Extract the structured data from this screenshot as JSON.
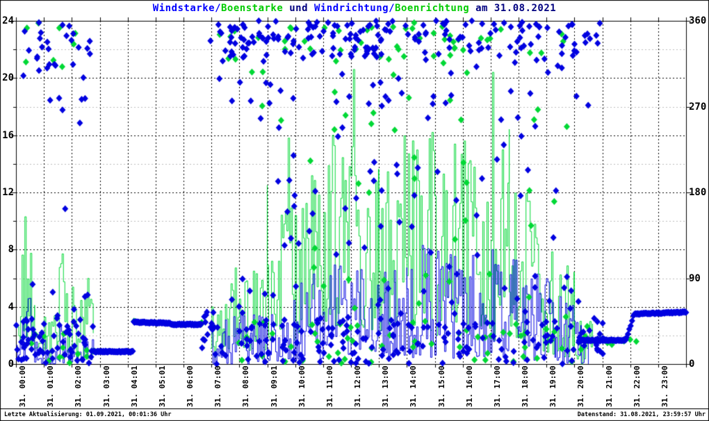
{
  "title_parts": [
    {
      "name": "windstaerke-label",
      "text": "Windstarke/",
      "color": "#0000ff"
    },
    {
      "name": "boenstaerke-label",
      "text": "Boenstarke",
      "color": "#00cc00"
    },
    {
      "name": "und-text",
      "text": " und ",
      "color": "#000080"
    },
    {
      "name": "windrichtung-label",
      "text": "Windrichtung/",
      "color": "#0000ff"
    },
    {
      "name": "boenrichtung-label",
      "text": "Boenrichtung",
      "color": "#00cc00"
    },
    {
      "name": "date-text",
      "text": " am 31.08.2021",
      "color": "#000080"
    }
  ],
  "footer": {
    "left": "Letzte Aktualisierung: 01.09.2021, 00:01:36 Uhr",
    "right": "Datenstand: 31.08.2021, 23:59:57 Uhr"
  },
  "chart_data": {
    "type": "line+scatter",
    "title": "Windstarke/Boenstarke und Windrichtung/Boenrichtung am 31.08.2021",
    "date": "31.08.2021",
    "seed": 20210831,
    "colors": {
      "wind": "#0000e0",
      "gust": "#00d835",
      "grid_major": "#000000",
      "grid_minor": "#bbbbbb",
      "axis": "#000000"
    },
    "x_axis": {
      "minutes": 1440,
      "tick_labels": [
        "31. 00:00",
        "31. 01:00",
        "31. 02:00",
        "31. 03:00",
        "31. 04:01",
        "31. 05:01",
        "31. 06:00",
        "31. 07:00",
        "31. 08:00",
        "31. 09:01",
        "31. 10:00",
        "31. 11:00",
        "31. 12:00",
        "31. 13:00",
        "31. 14:00",
        "31. 15:00",
        "31. 16:00",
        "31. 17:00",
        "31. 18:00",
        "31. 19:00",
        "31. 20:00",
        "31. 21:00",
        "31. 22:00",
        "31. 23:00"
      ]
    },
    "y_left": {
      "range": [
        0,
        24
      ],
      "ticks": [
        0,
        4,
        8,
        12,
        16,
        20,
        24
      ],
      "minor": [
        2,
        6,
        10,
        14,
        18,
        22
      ]
    },
    "y_right": {
      "range": [
        0,
        360
      ],
      "ticks": [
        0,
        90,
        180,
        270,
        360
      ]
    },
    "series": [
      {
        "name": "Windstarke",
        "kind": "line",
        "axis": "left",
        "color_key": "wind",
        "step": 3,
        "bias": 1.6,
        "segments": [
          [
            0,
            14,
            0,
            2.2
          ],
          [
            14,
            40,
            0,
            4.6
          ],
          [
            40,
            95,
            0,
            2.4
          ],
          [
            95,
            125,
            0,
            3.4
          ],
          [
            125,
            168,
            0,
            2.0
          ],
          [
            420,
            450,
            0,
            2.6
          ],
          [
            450,
            540,
            0,
            4.6
          ],
          [
            540,
            660,
            0.2,
            6.0
          ],
          [
            660,
            840,
            0.4,
            7.0
          ],
          [
            840,
            1080,
            0.4,
            8.2
          ],
          [
            1080,
            1160,
            0.2,
            6.5
          ],
          [
            1160,
            1215,
            0,
            5.0
          ],
          [
            1215,
            1230,
            0,
            2.0
          ]
        ],
        "spikes": [
          [
            30,
            4.6
          ],
          [
            640,
            6.3
          ],
          [
            872,
            8.3
          ],
          [
            905,
            7.9
          ],
          [
            982,
            7.6
          ],
          [
            1022,
            8.0
          ]
        ]
      },
      {
        "name": "Boenstarke",
        "kind": "line",
        "axis": "left",
        "color_key": "gust",
        "step": 3,
        "bias": 1.25,
        "segments": [
          [
            0,
            10,
            0.5,
            4.0
          ],
          [
            10,
            40,
            0.8,
            8.0
          ],
          [
            40,
            90,
            0.5,
            3.6
          ],
          [
            90,
            115,
            0.8,
            7.7
          ],
          [
            115,
            168,
            0.4,
            6.0
          ],
          [
            418,
            450,
            0,
            4.0
          ],
          [
            450,
            540,
            0.8,
            7.5
          ],
          [
            540,
            620,
            1.5,
            11.0
          ],
          [
            620,
            780,
            2.0,
            15.5
          ],
          [
            780,
            1000,
            2.0,
            16.0
          ],
          [
            1000,
            1060,
            1.5,
            16.5
          ],
          [
            1060,
            1130,
            1.0,
            12.5
          ],
          [
            1130,
            1200,
            0.5,
            8.0
          ],
          [
            1200,
            1240,
            0,
            3.5
          ]
        ],
        "spikes": [
          [
            18,
            10.3
          ],
          [
            100,
            7.7
          ],
          [
            540,
            12.5
          ],
          [
            585,
            15.8
          ],
          [
            680,
            16.0
          ],
          [
            724,
            20.6
          ],
          [
            893,
            16.2
          ],
          [
            962,
            15.6
          ],
          [
            1025,
            20.4
          ]
        ]
      },
      {
        "name": "Windrichtung",
        "kind": "scatter",
        "axis": "right",
        "color_key": "wind",
        "bands": [
          {
            "t0": 167,
            "t1": 252,
            "d0": 13,
            "d1": 13,
            "every": 1.5,
            "jitter": 1.2
          },
          {
            "t0": 253,
            "t1": 332,
            "d0": 44,
            "d1": 43,
            "every": 1.5,
            "jitter": 1.2
          },
          {
            "t0": 332,
            "t1": 399,
            "d0": 41.5,
            "d1": 41.5,
            "every": 1.5,
            "jitter": 1.2
          },
          {
            "t0": 1210,
            "t1": 1311,
            "d0": 25,
            "d1": 25,
            "every": 1.5,
            "jitter": 1.2
          },
          {
            "t0": 1312,
            "t1": 1328,
            "d0": 28,
            "d1": 50,
            "every": 3,
            "jitter": 2.5
          },
          {
            "t0": 1329,
            "t1": 1440,
            "d0": 52.5,
            "d1": 54.5,
            "every": 1.5,
            "jitter": 1.2
          }
        ],
        "clouds": [
          {
            "t0": 0,
            "t1": 167,
            "d0": 1,
            "d1": 48,
            "n": 62
          },
          {
            "t0": 0,
            "t1": 160,
            "d0": 300,
            "d1": 359,
            "n": 27
          },
          {
            "t0": 0,
            "t1": 150,
            "d0": 262,
            "d1": 300,
            "n": 5
          },
          {
            "t0": 5,
            "t1": 160,
            "d0": 50,
            "d1": 95,
            "n": 6
          },
          {
            "t0": 100,
            "t1": 160,
            "d0": 150,
            "d1": 260,
            "n": 2
          },
          {
            "t0": 399,
            "t1": 430,
            "d0": 8,
            "d1": 55,
            "n": 14
          },
          {
            "t0": 418,
            "t1": 800,
            "d0": 320,
            "d1": 360,
            "n": 110
          },
          {
            "t0": 800,
            "t1": 1215,
            "d0": 318,
            "d1": 360,
            "n": 70
          },
          {
            "t0": 1215,
            "t1": 1255,
            "d0": 330,
            "d1": 360,
            "n": 7
          },
          {
            "t0": 430,
            "t1": 1230,
            "d0": 255,
            "d1": 318,
            "n": 40
          },
          {
            "t0": 560,
            "t1": 1230,
            "d0": 95,
            "d1": 255,
            "n": 46
          },
          {
            "t0": 420,
            "t1": 1240,
            "d0": 48,
            "d1": 95,
            "n": 28
          },
          {
            "t0": 418,
            "t1": 820,
            "d0": 0,
            "d1": 48,
            "n": 90
          },
          {
            "t0": 820,
            "t1": 1245,
            "d0": 0,
            "d1": 48,
            "n": 70
          },
          {
            "t0": 1245,
            "t1": 1262,
            "d0": 10,
            "d1": 45,
            "n": 10
          }
        ]
      },
      {
        "name": "Boenrichtung",
        "kind": "scatter",
        "axis": "right",
        "color_key": "gust",
        "bands": [],
        "clouds": [
          {
            "t0": 0,
            "t1": 167,
            "d0": 1,
            "d1": 40,
            "n": 13
          },
          {
            "t0": 5,
            "t1": 150,
            "d0": 310,
            "d1": 360,
            "n": 8
          },
          {
            "t0": 163,
            "t1": 171,
            "d0": 11,
            "d1": 15,
            "n": 2
          },
          {
            "t0": 249,
            "t1": 257,
            "d0": 42,
            "d1": 46,
            "n": 2
          },
          {
            "t0": 395,
            "t1": 403,
            "d0": 39,
            "d1": 44,
            "n": 2
          },
          {
            "t0": 435,
            "t1": 1190,
            "d0": 315,
            "d1": 360,
            "n": 50
          },
          {
            "t0": 500,
            "t1": 1150,
            "d0": 250,
            "d1": 315,
            "n": 15
          },
          {
            "t0": 600,
            "t1": 1200,
            "d0": 100,
            "d1": 250,
            "n": 17
          },
          {
            "t0": 500,
            "t1": 1200,
            "d0": 45,
            "d1": 100,
            "n": 10
          },
          {
            "t0": 420,
            "t1": 1245,
            "d0": 0,
            "d1": 45,
            "n": 58
          },
          {
            "t0": 1250,
            "t1": 1345,
            "d0": 18,
            "d1": 35,
            "n": 6
          }
        ]
      }
    ]
  }
}
